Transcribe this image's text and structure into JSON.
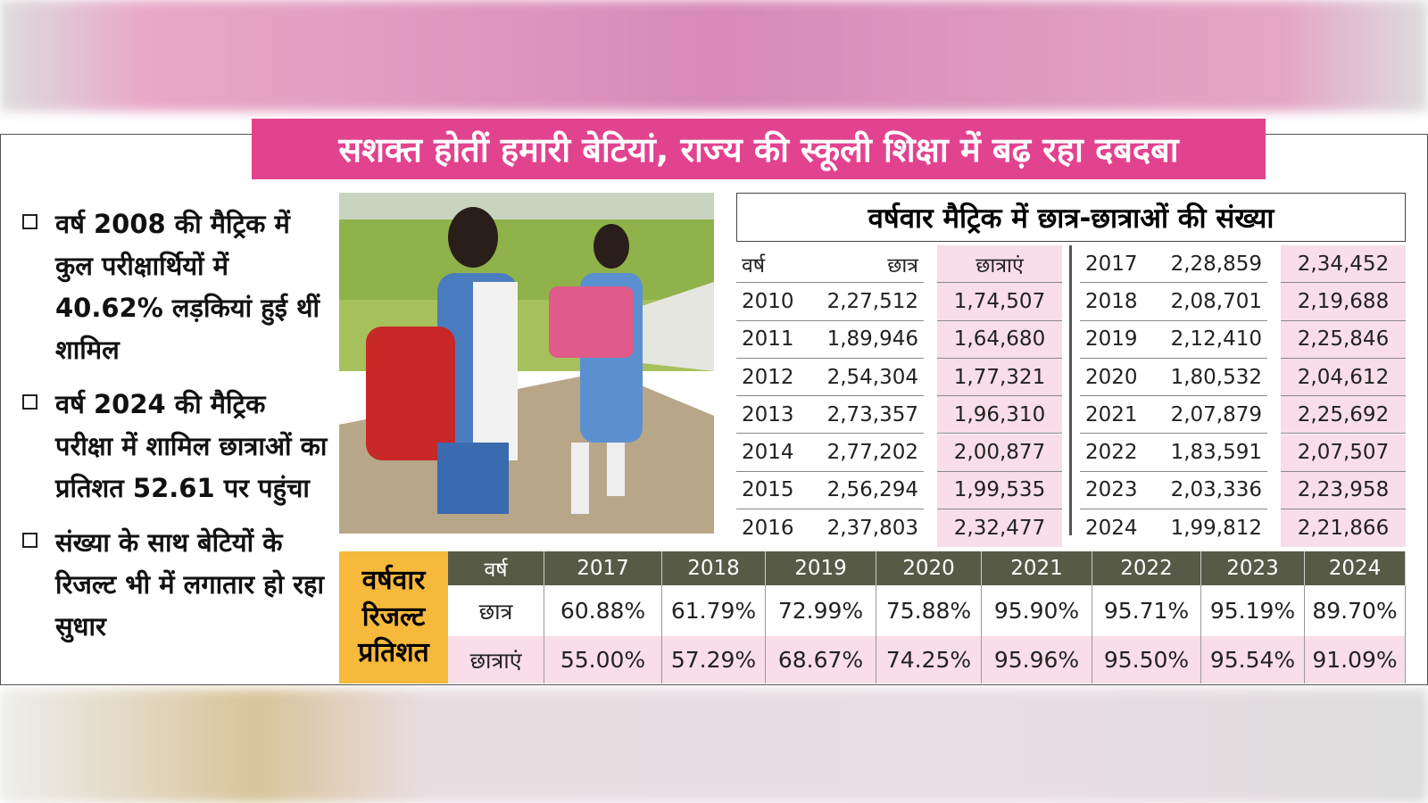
{
  "title": "सशक्त होतीं हमारी बेटियां, राज्य की स्कूली शिक्षा में बढ़ रहा दबदबा",
  "bullets": [
    "वर्ष 2008 की मैट्रिक में कुल परीक्षार्थियों में 40.62% लड़कियां हुई थीं शामिल",
    "वर्ष 2024 की मैट्रिक परीक्षा में शामिल छात्राओं का प्रतिशत 52.61 पर पहुंचा",
    "संख्या के साथ बेटियों के रिजल्ट भी में लगातार हो रहा सुधार"
  ],
  "count_table": {
    "title": "वर्षवार मैट्रिक में छात्र-छात्राओं की संख्या",
    "headers": [
      "वर्ष",
      "छात्र",
      "छात्राएं"
    ],
    "left_rows": [
      [
        "2010",
        "2,27,512",
        "1,74,507"
      ],
      [
        "2011",
        "1,89,946",
        "1,64,680"
      ],
      [
        "2012",
        "2,54,304",
        "1,77,321"
      ],
      [
        "2013",
        "2,73,357",
        "1,96,310"
      ],
      [
        "2014",
        "2,77,202",
        "2,00,877"
      ],
      [
        "2015",
        "2,56,294",
        "1,99,535"
      ],
      [
        "2016",
        "2,37,803",
        "2,32,477"
      ]
    ],
    "right_rows": [
      [
        "2017",
        "2,28,859",
        "2,34,452"
      ],
      [
        "2018",
        "2,08,701",
        "2,19,688"
      ],
      [
        "2019",
        "2,12,410",
        "2,25,846"
      ],
      [
        "2020",
        "1,80,532",
        "2,04,612"
      ],
      [
        "2021",
        "2,07,879",
        "2,25,692"
      ],
      [
        "2022",
        "1,83,591",
        "2,07,507"
      ],
      [
        "2023",
        "2,03,336",
        "2,23,958"
      ],
      [
        "2024",
        "1,99,812",
        "2,21,866"
      ]
    ]
  },
  "result_table": {
    "label": "वर्षवार रिजल्ट प्रतिशत",
    "header": [
      "वर्ष",
      "2017",
      "2018",
      "2019",
      "2020",
      "2021",
      "2022",
      "2023",
      "2024"
    ],
    "rows": [
      [
        "छात्र",
        "60.88%",
        "61.79%",
        "72.99%",
        "75.88%",
        "95.90%",
        "95.71%",
        "95.19%",
        "89.70%"
      ],
      [
        "छात्राएं",
        "55.00%",
        "57.29%",
        "68.67%",
        "74.25%",
        "95.96%",
        "95.50%",
        "95.54%",
        "91.09%"
      ]
    ]
  }
}
